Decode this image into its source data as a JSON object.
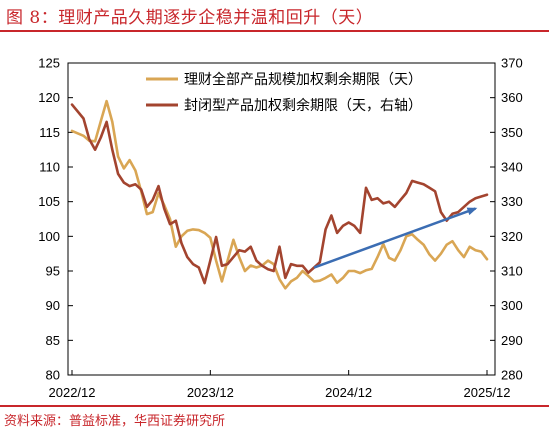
{
  "figure": {
    "title": "图 8：理财产品久期逐步企稳并温和回升（天）",
    "source": "资料来源：普益标准，华西证券研究所"
  },
  "colors": {
    "accent": "#c8262b",
    "series_gold": "#d9a654",
    "series_brown": "#a3442f",
    "arrow": "#3b6db3"
  },
  "chart_data": {
    "type": "line",
    "x_tick_labels": [
      "2022/12",
      "2023/12",
      "2024/12",
      "2025/12"
    ],
    "x_tick_dates": [
      "2022-12",
      "2023-12",
      "2024-12",
      "2025-12"
    ],
    "y_left": {
      "ticks": [
        "80",
        "85",
        "90",
        "95",
        "100",
        "105",
        "110",
        "115",
        "120",
        "125"
      ],
      "lim": [
        80,
        125
      ]
    },
    "y_right": {
      "ticks": [
        "280",
        "290",
        "300",
        "310",
        "320",
        "330",
        "340",
        "350",
        "360",
        "370"
      ],
      "lim": [
        280,
        370
      ]
    },
    "grid": false,
    "legend_position": "top",
    "series": [
      {
        "name": "理财全部产品规模加权剩余期限（天）",
        "axis": "left",
        "color": "#d9a654",
        "x": [
          "2022-12",
          "2023-01",
          "2023-01",
          "2023-02",
          "2023-02",
          "2023-03",
          "2023-03",
          "2023-04",
          "2023-04",
          "2023-05",
          "2023-05",
          "2023-06",
          "2023-06",
          "2023-07",
          "2023-07",
          "2023-08",
          "2023-08",
          "2023-09",
          "2023-09",
          "2023-10",
          "2023-10",
          "2023-11",
          "2023-11",
          "2023-12",
          "2023-12",
          "2024-01",
          "2024-01",
          "2024-02",
          "2024-02",
          "2024-03",
          "2024-03",
          "2024-04",
          "2024-04",
          "2024-05",
          "2024-05",
          "2024-06",
          "2024-06",
          "2024-07",
          "2024-07",
          "2024-08",
          "2024-08",
          "2024-09",
          "2024-09",
          "2024-10",
          "2024-10",
          "2024-11",
          "2024-11",
          "2024-12",
          "2024-12",
          "2025-01",
          "2025-01",
          "2025-02",
          "2025-02",
          "2025-03",
          "2025-03",
          "2025-04",
          "2025-04",
          "2025-05",
          "2025-05",
          "2025-06",
          "2025-06",
          "2025-07",
          "2025-07",
          "2025-08",
          "2025-08",
          "2025-09",
          "2025-09",
          "2025-10",
          "2025-10",
          "2025-11",
          "2025-11",
          "2025-12"
        ],
        "y": [
          115.2,
          114.5,
          113.8,
          113.7,
          116.6,
          119.5,
          116.5,
          111.5,
          109.8,
          111.0,
          109.5,
          106.5,
          103.2,
          103.5,
          106.2,
          104.5,
          102.5,
          98.5,
          100.0,
          100.8,
          101.0,
          100.9,
          100.5,
          99.8,
          96.5,
          93.5,
          96.5,
          99.5,
          97.0,
          95.0,
          95.8,
          95.5,
          95.8,
          96.5,
          96.0,
          93.8,
          92.5,
          93.5,
          94.0,
          95.0,
          94.3,
          93.5,
          93.6,
          94.0,
          94.5,
          93.3,
          94.0,
          95.0,
          95.0,
          94.7,
          95.1,
          95.3,
          97.0,
          98.9,
          96.9,
          96.5,
          98.0,
          100.0,
          100.3,
          99.5,
          98.8,
          97.4,
          96.5,
          97.5,
          98.8,
          99.3,
          98.0,
          97.0,
          98.5,
          98.0,
          97.8,
          96.7
        ]
      },
      {
        "name": "封闭型产品加权剩余期限（天，右轴）",
        "axis": "right",
        "color": "#a3442f",
        "x": [
          "2022-12",
          "2023-01",
          "2023-01",
          "2023-02",
          "2023-02",
          "2023-03",
          "2023-03",
          "2023-04",
          "2023-04",
          "2023-05",
          "2023-05",
          "2023-06",
          "2023-06",
          "2023-07",
          "2023-07",
          "2023-08",
          "2023-08",
          "2023-09",
          "2023-09",
          "2023-10",
          "2023-10",
          "2023-11",
          "2023-11",
          "2023-12",
          "2023-12",
          "2024-01",
          "2024-01",
          "2024-02",
          "2024-02",
          "2024-03",
          "2024-03",
          "2024-04",
          "2024-04",
          "2024-05",
          "2024-05",
          "2024-06",
          "2024-06",
          "2024-07",
          "2024-07",
          "2024-08",
          "2024-08",
          "2024-09",
          "2024-09",
          "2024-10",
          "2024-10",
          "2024-11",
          "2024-11",
          "2024-12",
          "2024-12",
          "2025-01",
          "2025-01",
          "2025-02",
          "2025-02",
          "2025-03",
          "2025-03",
          "2025-04",
          "2025-04",
          "2025-05",
          "2025-05",
          "2025-06",
          "2025-06",
          "2025-07",
          "2025-07",
          "2025-08",
          "2025-08",
          "2025-09",
          "2025-09",
          "2025-10",
          "2025-10",
          "2025-11",
          "2025-11",
          "2025-12"
        ],
        "y": [
          358.0,
          354.0,
          348.0,
          345.0,
          348.5,
          353.0,
          345.0,
          338.0,
          335.5,
          334.5,
          335.0,
          333.5,
          328.5,
          330.5,
          334.5,
          328.0,
          323.5,
          324.5,
          318.0,
          314.0,
          312.0,
          311.0,
          306.5,
          313.0,
          319.8,
          311.5,
          312.0,
          314.0,
          316.0,
          315.6,
          317.0,
          313.0,
          311.5,
          310.5,
          310.0,
          317.0,
          308.0,
          312.0,
          311.5,
          311.5,
          309.5,
          311.0,
          312.5,
          322.0,
          326.0,
          321.0,
          323.0,
          324.0,
          323.0,
          321.0,
          334.0,
          330.5,
          331.0,
          329.5,
          330.0,
          328.5,
          330.5,
          332.5,
          336.0,
          335.5,
          335.0,
          334.0,
          333.0,
          327.0,
          324.5,
          326.5,
          327.0,
          328.5,
          330.0,
          331.0,
          331.5,
          332.0
        ]
      }
    ],
    "annotations": [
      {
        "type": "arrow",
        "from": {
          "x": "2024-09",
          "y_right": 311
        },
        "to": {
          "x": "2025-11",
          "y_right": 328
        }
      }
    ]
  }
}
